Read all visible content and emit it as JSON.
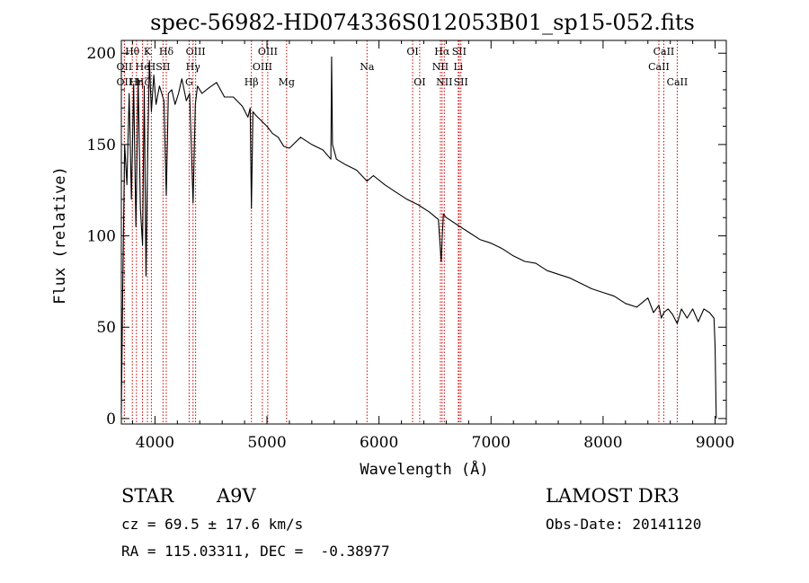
{
  "chart_data": {
    "type": "line",
    "title": "spec-56982-HD074336S012053B01_sp15-052.fits",
    "xlabel": "Wavelength (Å)",
    "ylabel": "Flux (relative)",
    "xlim": [
      3700,
      9100
    ],
    "ylim": [
      -3,
      207
    ],
    "xticks": [
      4000,
      5000,
      6000,
      7000,
      8000,
      9000
    ],
    "yticks": [
      0,
      50,
      100,
      150,
      200
    ],
    "xtick_labels": [
      "4000",
      "5000",
      "6000",
      "7000",
      "8000",
      "9000"
    ],
    "ytick_labels": [
      "0",
      "50",
      "100",
      "150",
      "200"
    ],
    "series": [
      {
        "name": "flux",
        "x": [
          3700,
          3712,
          3730,
          3750,
          3770,
          3790,
          3810,
          3830,
          3850,
          3870,
          3889,
          3905,
          3920,
          3933,
          3950,
          3968,
          3990,
          4010,
          4040,
          4080,
          4101,
          4120,
          4150,
          4180,
          4210,
          4240,
          4280,
          4310,
          4340,
          4360,
          4380,
          4420,
          4480,
          4550,
          4620,
          4700,
          4780,
          4830,
          4850,
          4861,
          4875,
          4900,
          4950,
          5000,
          5050,
          5100,
          5150,
          5200,
          5300,
          5400,
          5500,
          5570,
          5577,
          5585,
          5620,
          5700,
          5800,
          5893,
          5950,
          6050,
          6150,
          6250,
          6350,
          6450,
          6530,
          6555,
          6563,
          6575,
          6600,
          6700,
          6800,
          6900,
          7000,
          7100,
          7200,
          7300,
          7400,
          7500,
          7600,
          7700,
          7800,
          7900,
          8000,
          8100,
          8200,
          8300,
          8400,
          8450,
          8498,
          8520,
          8542,
          8580,
          8620,
          8662,
          8700,
          8750,
          8800,
          8850,
          8900,
          8950,
          8990,
          9000,
          9010
        ],
        "values": [
          3,
          70,
          150,
          128,
          178,
          120,
          183,
          105,
          186,
          115,
          95,
          182,
          78,
          135,
          196,
          168,
          188,
          172,
          182,
          174,
          122,
          178,
          180,
          172,
          178,
          186,
          174,
          178,
          118,
          172,
          182,
          178,
          181,
          184,
          176,
          176,
          171,
          165,
          170,
          115,
          168,
          166,
          163,
          160,
          156,
          154,
          149,
          148,
          154,
          150,
          147,
          142,
          198,
          150,
          142,
          139,
          136,
          130,
          133,
          128,
          124,
          120,
          117,
          113,
          109,
          86,
          98,
          112,
          110,
          106,
          102,
          98,
          96,
          93,
          89,
          86,
          85,
          81,
          79,
          77,
          74,
          71,
          69,
          67,
          63,
          61,
          66,
          58,
          62,
          55,
          58,
          60,
          57,
          52,
          60,
          55,
          60,
          53,
          60,
          58,
          55,
          40,
          0
        ]
      }
    ],
    "line_markers": [
      {
        "label": "Hθ",
        "x": 3798,
        "row": 1
      },
      {
        "label": "OII",
        "x": 3727,
        "row": 2
      },
      {
        "label": "OII",
        "x": 3727,
        "row": 3
      },
      {
        "label": "Hη",
        "x": 3835,
        "row": 3
      },
      {
        "label": "Hζ",
        "x": 3889,
        "row": 3
      },
      {
        "label": "He",
        "x": 3889,
        "row": 2
      },
      {
        "label": "K",
        "x": 3933,
        "row": 1
      },
      {
        "label": "H",
        "x": 3968,
        "row": 2
      },
      {
        "label": "Hδ",
        "x": 4101,
        "row": 1
      },
      {
        "label": "SII",
        "x": 4072,
        "row": 2
      },
      {
        "label": "OIII",
        "x": 4363,
        "row": 1
      },
      {
        "label": "Hγ",
        "x": 4340,
        "row": 2
      },
      {
        "label": "G",
        "x": 4305,
        "row": 3
      },
      {
        "label": "Hβ",
        "x": 4861,
        "row": 3
      },
      {
        "label": "OIII",
        "x": 5007,
        "row": 1
      },
      {
        "label": "OIII",
        "x": 4959,
        "row": 2
      },
      {
        "label": "Mg",
        "x": 5175,
        "row": 3
      },
      {
        "label": "Na",
        "x": 5893,
        "row": 2
      },
      {
        "label": "OI",
        "x": 6300,
        "row": 1
      },
      {
        "label": "OI",
        "x": 6363,
        "row": 3
      },
      {
        "label": "Hα",
        "x": 6563,
        "row": 1
      },
      {
        "label": "NII",
        "x": 6548,
        "row": 2
      },
      {
        "label": "NII",
        "x": 6583,
        "row": 3
      },
      {
        "label": "SII",
        "x": 6716,
        "row": 1
      },
      {
        "label": "Li",
        "x": 6708,
        "row": 2
      },
      {
        "label": "SII",
        "x": 6731,
        "row": 3
      },
      {
        "label": "CaII",
        "x": 8542,
        "row": 1
      },
      {
        "label": "CaII",
        "x": 8498,
        "row": 2
      },
      {
        "label": "CaII",
        "x": 8662,
        "row": 3
      }
    ]
  },
  "info": {
    "class_label": "STAR",
    "subclass": "A9V",
    "survey": "LAMOST DR3",
    "cz_line": "cz = 69.5 ± 17.6 km/s",
    "obs_date_line": "Obs-Date: 20141120",
    "radec_line": "RA = 115.03311, DEC =  -0.38977"
  },
  "colors": {
    "spectrum": "#000000",
    "marker_line": "#cc0000",
    "axis": "#000000"
  }
}
